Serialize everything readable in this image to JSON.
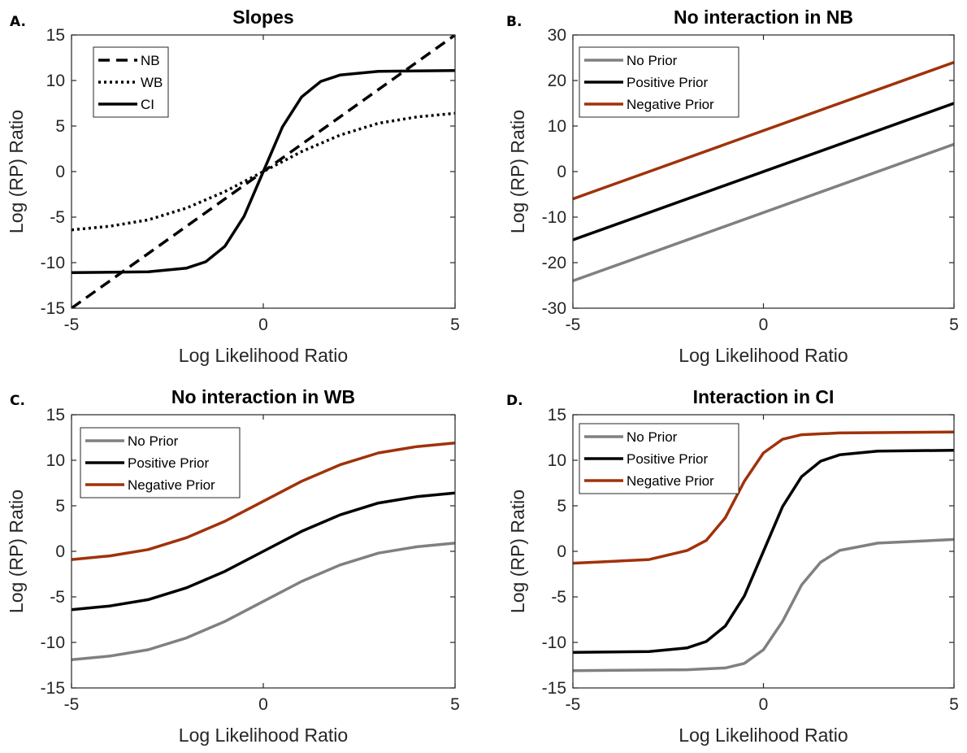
{
  "figure": {
    "panels": [
      {
        "letter": "A.",
        "title": "Slopes",
        "legend": [
          {
            "label": "NB",
            "style": "dashed"
          },
          {
            "label": "WB",
            "style": "dotted"
          },
          {
            "label": "CI",
            "style": "solid"
          }
        ]
      },
      {
        "letter": "B.",
        "title": "No interaction in NB",
        "legend": [
          {
            "label": "No Prior",
            "color": "#808080"
          },
          {
            "label": "Positive Prior",
            "color": "#000000"
          },
          {
            "label": "Negative Prior",
            "color": "#A0320A"
          }
        ]
      },
      {
        "letter": "C.",
        "title": "No interaction in WB",
        "legend": [
          {
            "label": "No Prior",
            "color": "#808080"
          },
          {
            "label": "Positive Prior",
            "color": "#000000"
          },
          {
            "label": "Negative Prior",
            "color": "#A0320A"
          }
        ]
      },
      {
        "letter": "D.",
        "title": "Interaction in CI",
        "legend": [
          {
            "label": "No Prior",
            "color": "#808080"
          },
          {
            "label": "Positive Prior",
            "color": "#000000"
          },
          {
            "label": "Negative Prior",
            "color": "#A0320A"
          }
        ]
      }
    ]
  },
  "chart_data": [
    {
      "type": "line",
      "title": "Slopes",
      "xlabel": "Log Likelihood Ratio",
      "ylabel": "Log (RP) Ratio",
      "xlim": [
        -5,
        5
      ],
      "ylim": [
        -15,
        15
      ],
      "xticks": [
        -5,
        0,
        5
      ],
      "yticks": [
        -15,
        -10,
        -5,
        0,
        5,
        10,
        15
      ],
      "legend_position": "top-left",
      "grid": false,
      "series": [
        {
          "name": "NB",
          "color": "#000000",
          "style": "dashed",
          "x": [
            -5,
            -4,
            -3,
            -2,
            -1,
            0,
            1,
            2,
            3,
            4,
            5
          ],
          "y": [
            -15,
            -12,
            -9,
            -6,
            -3,
            0,
            3,
            6,
            9,
            12,
            15
          ]
        },
        {
          "name": "WB",
          "color": "#000000",
          "style": "dotted",
          "x": [
            -5,
            -4,
            -3,
            -2,
            -1,
            0,
            1,
            2,
            3,
            4,
            5
          ],
          "y": [
            -6.4,
            -6.0,
            -5.3,
            -4.0,
            -2.2,
            0,
            2.2,
            4.0,
            5.3,
            6.0,
            6.4
          ]
        },
        {
          "name": "CI",
          "color": "#000000",
          "style": "solid",
          "x": [
            -5,
            -3,
            -2,
            -1.5,
            -1,
            -0.5,
            0,
            0.5,
            1,
            1.5,
            2,
            3,
            5
          ],
          "y": [
            -11.1,
            -11.0,
            -10.6,
            -9.9,
            -8.2,
            -4.9,
            0,
            4.9,
            8.2,
            9.9,
            10.6,
            11.0,
            11.1
          ]
        }
      ]
    },
    {
      "type": "line",
      "title": "No interaction in NB",
      "xlabel": "Log Likelihood Ratio",
      "ylabel": "Log (RP) Ratio",
      "xlim": [
        -5,
        5
      ],
      "ylim": [
        -30,
        30
      ],
      "xticks": [
        -5,
        0,
        5
      ],
      "yticks": [
        -30,
        -20,
        -10,
        0,
        10,
        20,
        30
      ],
      "legend_position": "top-left",
      "grid": false,
      "series": [
        {
          "name": "No Prior",
          "color": "#808080",
          "x": [
            -5,
            5
          ],
          "y": [
            -24,
            6
          ]
        },
        {
          "name": "Positive Prior",
          "color": "#000000",
          "x": [
            -5,
            5
          ],
          "y": [
            -15,
            15
          ]
        },
        {
          "name": "Negative Prior",
          "color": "#A0320A",
          "x": [
            -5,
            5
          ],
          "y": [
            -6,
            24
          ]
        }
      ]
    },
    {
      "type": "line",
      "title": "No interaction in WB",
      "xlabel": "Log Likelihood Ratio",
      "ylabel": "Log (RP) Ratio",
      "xlim": [
        -5,
        5
      ],
      "ylim": [
        -15,
        15
      ],
      "xticks": [
        -5,
        0,
        5
      ],
      "yticks": [
        -15,
        -10,
        -5,
        0,
        5,
        10,
        15
      ],
      "legend_position": "top-left",
      "grid": false,
      "series": [
        {
          "name": "No Prior",
          "color": "#808080",
          "x": [
            -5,
            -4,
            -3,
            -2,
            -1,
            0,
            1,
            2,
            3,
            4,
            5
          ],
          "y": [
            -11.9,
            -11.5,
            -10.8,
            -9.5,
            -7.7,
            -5.5,
            -3.3,
            -1.5,
            -0.2,
            0.5,
            0.9
          ]
        },
        {
          "name": "Positive Prior",
          "color": "#000000",
          "x": [
            -5,
            -4,
            -3,
            -2,
            -1,
            0,
            1,
            2,
            3,
            4,
            5
          ],
          "y": [
            -6.4,
            -6.0,
            -5.3,
            -4.0,
            -2.2,
            0,
            2.2,
            4.0,
            5.3,
            6.0,
            6.4
          ]
        },
        {
          "name": "Negative Prior",
          "color": "#A0320A",
          "x": [
            -5,
            -4,
            -3,
            -2,
            -1,
            0,
            1,
            2,
            3,
            4,
            5
          ],
          "y": [
            -0.9,
            -0.5,
            0.2,
            1.5,
            3.3,
            5.5,
            7.7,
            9.5,
            10.8,
            11.5,
            11.9
          ]
        }
      ]
    },
    {
      "type": "line",
      "title": "Interaction in CI",
      "xlabel": "Log Likelihood Ratio",
      "ylabel": "Log (RP) Ratio",
      "xlim": [
        -5,
        5
      ],
      "ylim": [
        -15,
        15
      ],
      "xticks": [
        -5,
        0,
        5
      ],
      "yticks": [
        -15,
        -10,
        -5,
        0,
        5,
        10,
        15
      ],
      "legend_position": "top-left",
      "grid": false,
      "series": [
        {
          "name": "No Prior",
          "color": "#808080",
          "x": [
            -5,
            -2,
            -1,
            -0.5,
            0,
            0.5,
            1,
            1.5,
            2,
            3,
            5
          ],
          "y": [
            -13.1,
            -13.0,
            -12.8,
            -12.3,
            -10.8,
            -7.7,
            -3.7,
            -1.2,
            0.1,
            0.9,
            1.3
          ]
        },
        {
          "name": "Positive Prior",
          "color": "#000000",
          "x": [
            -5,
            -3,
            -2,
            -1.5,
            -1,
            -0.5,
            0,
            0.5,
            1,
            1.5,
            2,
            3,
            5
          ],
          "y": [
            -11.1,
            -11.0,
            -10.6,
            -9.9,
            -8.2,
            -4.9,
            0,
            4.9,
            8.2,
            9.9,
            10.6,
            11.0,
            11.1
          ]
        },
        {
          "name": "Negative Prior",
          "color": "#A0320A",
          "x": [
            -5,
            -3,
            -2,
            -1.5,
            -1,
            -0.5,
            0,
            0.5,
            1,
            2,
            5
          ],
          "y": [
            -1.3,
            -0.9,
            0.1,
            1.2,
            3.7,
            7.7,
            10.8,
            12.3,
            12.8,
            13.0,
            13.1
          ]
        }
      ]
    }
  ]
}
